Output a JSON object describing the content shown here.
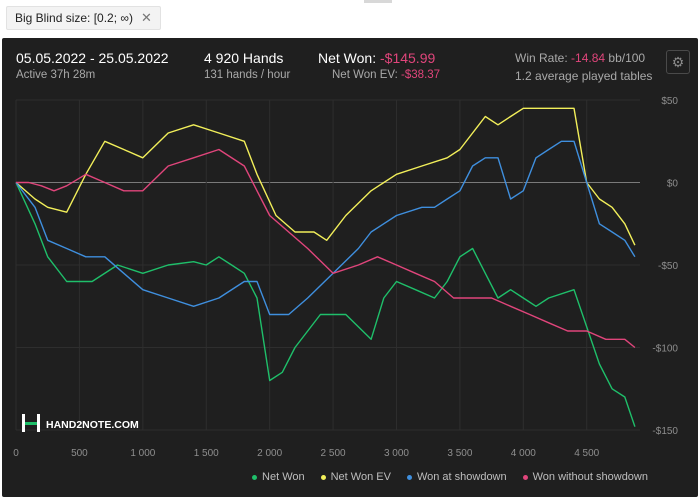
{
  "filter": {
    "label": "Big Blind size: [0.2; ∞)",
    "close": "✕"
  },
  "header": {
    "date_range": "05.05.2022 - 25.05.2022",
    "active": "Active 37h 28m",
    "hands": "4 920 Hands",
    "hands_rate": "131 hands / hour",
    "net_won_label": "Net Won:",
    "net_won_value": "-$145.99",
    "net_won_ev_label": "Net Won  EV:",
    "net_won_ev_value": "-$38.37",
    "win_rate_label": "Win Rate:",
    "win_rate_value": "-14.84",
    "win_rate_unit": "bb/100",
    "tables": "1.2 average played tables"
  },
  "logo": "HAND2NOTE.COM",
  "colors": {
    "net_won": "#1fbf6a",
    "net_won_ev": "#f2ef5a",
    "showdown": "#3f8fde",
    "no_showdown": "#e0457b",
    "background": "#1f1f1f"
  },
  "chart_data": {
    "type": "line",
    "xlabel": "",
    "ylabel": "",
    "xlim": [
      0,
      4920
    ],
    "ylim": [
      -150,
      50
    ],
    "x_ticks": [
      0,
      500,
      1000,
      1500,
      2000,
      2500,
      3000,
      3500,
      4000,
      4500
    ],
    "x_tick_labels": [
      "0",
      "500",
      "1 000",
      "1 500",
      "2 000",
      "2 500",
      "3 000",
      "3 500",
      "4 000",
      "4 500"
    ],
    "y_ticks": [
      50,
      0,
      -50,
      -100,
      -150
    ],
    "y_tick_labels": [
      "$50",
      "$0",
      "-$50",
      "-$100",
      "-$150"
    ],
    "grid": true,
    "legend_position": "bottom-right",
    "series": [
      {
        "name": "Net Won",
        "color": "#1fbf6a",
        "x": [
          0,
          150,
          250,
          400,
          600,
          800,
          1000,
          1200,
          1400,
          1500,
          1600,
          1700,
          1800,
          1900,
          2000,
          2100,
          2200,
          2400,
          2600,
          2800,
          2900,
          3000,
          3150,
          3300,
          3400,
          3500,
          3600,
          3700,
          3800,
          3900,
          4000,
          4100,
          4200,
          4400,
          4600,
          4700,
          4800,
          4880
        ],
        "y": [
          0,
          -25,
          -45,
          -60,
          -60,
          -50,
          -55,
          -50,
          -48,
          -50,
          -45,
          -50,
          -55,
          -70,
          -120,
          -115,
          -100,
          -80,
          -80,
          -95,
          -70,
          -60,
          -65,
          -70,
          -60,
          -45,
          -40,
          -55,
          -70,
          -65,
          -70,
          -75,
          -70,
          -65,
          -110,
          -125,
          -130,
          -148
        ]
      },
      {
        "name": "Net Won  EV",
        "color": "#f2ef5a",
        "x": [
          0,
          150,
          250,
          400,
          550,
          700,
          850,
          1000,
          1200,
          1400,
          1600,
          1800,
          1900,
          2050,
          2200,
          2350,
          2450,
          2600,
          2800,
          3000,
          3200,
          3400,
          3500,
          3600,
          3700,
          3800,
          3900,
          4000,
          4100,
          4200,
          4300,
          4400,
          4500,
          4600,
          4700,
          4800,
          4880
        ],
        "y": [
          0,
          -10,
          -15,
          -18,
          5,
          25,
          20,
          15,
          30,
          35,
          30,
          25,
          5,
          -20,
          -30,
          -30,
          -35,
          -20,
          -5,
          5,
          10,
          15,
          20,
          30,
          40,
          35,
          40,
          45,
          45,
          45,
          45,
          45,
          0,
          -10,
          -15,
          -25,
          -38
        ]
      },
      {
        "name": "Won at showdown",
        "color": "#3f8fde",
        "x": [
          0,
          150,
          250,
          400,
          550,
          700,
          850,
          1000,
          1200,
          1400,
          1600,
          1800,
          1900,
          2000,
          2150,
          2300,
          2500,
          2700,
          2800,
          3000,
          3200,
          3300,
          3400,
          3500,
          3600,
          3700,
          3800,
          3900,
          4000,
          4100,
          4200,
          4300,
          4400,
          4500,
          4600,
          4700,
          4800,
          4880
        ],
        "y": [
          0,
          -15,
          -35,
          -40,
          -45,
          -45,
          -55,
          -65,
          -70,
          -75,
          -70,
          -60,
          -60,
          -80,
          -80,
          -70,
          -55,
          -40,
          -30,
          -20,
          -15,
          -15,
          -10,
          -5,
          10,
          15,
          15,
          -10,
          -5,
          15,
          20,
          25,
          25,
          0,
          -25,
          -30,
          -35,
          -45
        ]
      },
      {
        "name": "Won without showdown",
        "color": "#e0457b",
        "x": [
          0,
          100,
          200,
          300,
          400,
          550,
          700,
          850,
          1000,
          1200,
          1400,
          1600,
          1800,
          1900,
          2000,
          2150,
          2300,
          2500,
          2700,
          2850,
          3000,
          3150,
          3300,
          3450,
          3600,
          3750,
          3900,
          4050,
          4200,
          4350,
          4500,
          4650,
          4800,
          4880
        ],
        "y": [
          0,
          0,
          -2,
          -5,
          -2,
          5,
          0,
          -5,
          -5,
          10,
          15,
          20,
          10,
          -5,
          -20,
          -30,
          -40,
          -55,
          -50,
          -45,
          -50,
          -55,
          -60,
          -70,
          -70,
          -70,
          -75,
          -80,
          -85,
          -90,
          -90,
          -95,
          -95,
          -100
        ]
      }
    ]
  },
  "legend": [
    "Net Won",
    "Net Won  EV",
    "Won at showdown",
    "Won without showdown"
  ]
}
